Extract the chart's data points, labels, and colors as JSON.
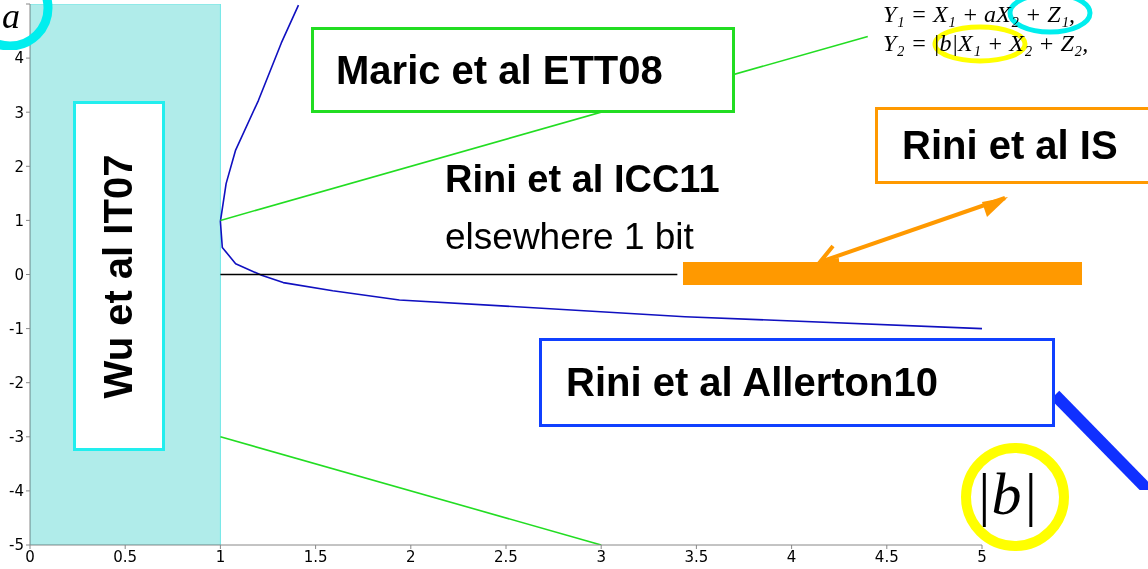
{
  "chart_data": {
    "type": "line",
    "xlim": [
      0,
      5
    ],
    "xticks": [
      0,
      0.5,
      1,
      1.5,
      2,
      2.5,
      3,
      3.5,
      4,
      4.5,
      5
    ],
    "ylim": [
      -5,
      5
    ],
    "yticks": [
      -5,
      -4,
      -3,
      -2,
      -1,
      0,
      1,
      2,
      3,
      4,
      {
        "value": 5,
        "label": null
      }
    ],
    "series": [
      {
        "color": "#1010c0",
        "x": [
          1.41,
          1.32,
          1.2,
          1.08,
          1.03,
          1.0,
          1.01,
          1.08,
          1.22,
          1.33,
          1.59,
          1.94,
          3.44,
          5.0
        ],
        "values": [
          4.98,
          4.28,
          3.22,
          2.3,
          1.68,
          0.98,
          0.5,
          0.2,
          -0.02,
          -0.15,
          -0.3,
          -0.47,
          -0.78,
          -1.0
        ]
      },
      {
        "color": "#22dd22",
        "x": [
          1,
          4.4
        ],
        "values": [
          1,
          4.4
        ]
      },
      {
        "color": "#22dd22",
        "x": [
          1,
          3
        ],
        "values": [
          -3,
          -5
        ]
      },
      {
        "color": "#000000",
        "x": [
          1,
          3.4
        ],
        "values": [
          0,
          0
        ]
      }
    ],
    "bands": [
      {
        "axis": "x",
        "from": 0,
        "to": 1,
        "color": "#b0ecea"
      }
    ],
    "legend": false,
    "grid": false,
    "annotations": [
      "Maric et al ETT08",
      "Rini et al ICC11",
      "elsewhere 1 bit",
      "Rini et al IS",
      "Rini et al Allerton10",
      "Wu et al IT07",
      "Y₁ = X₁ + aX₂ + Z₁,",
      "Y₂ = |b|X₁ + X₂ + Z₂,",
      "|b|",
      "a"
    ]
  }
}
